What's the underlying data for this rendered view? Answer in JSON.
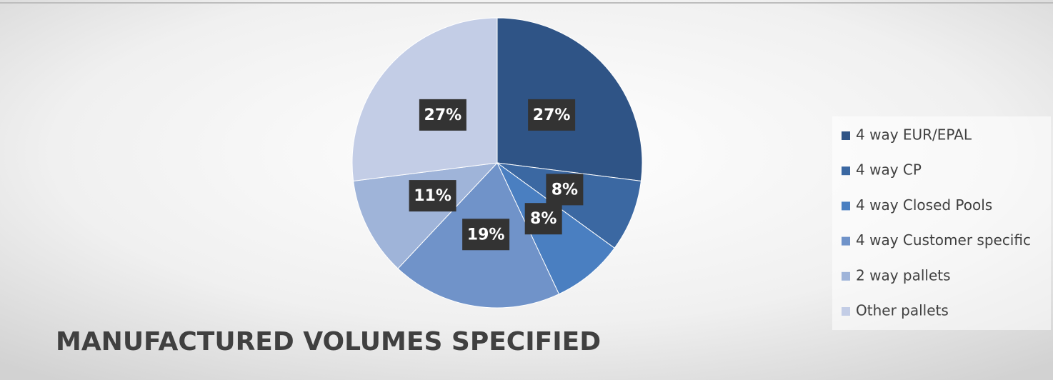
{
  "chart_data": {
    "type": "pie",
    "title": "MANUFACTURED VOLUMES SPECIFIED",
    "categories": [
      "4 way EUR/EPAL",
      "4 way CP",
      "4 way Closed Pools",
      "4 way Customer specific",
      "2 way pallets",
      "Other pallets"
    ],
    "values": [
      27,
      8,
      8,
      19,
      11,
      27
    ],
    "value_labels": [
      "27%",
      "8%",
      "8%",
      "19%",
      "11%",
      "27%"
    ],
    "colors": [
      "#2f5486",
      "#3b68a2",
      "#4a7fc1",
      "#7093c9",
      "#9fb4d9",
      "#c3cde6"
    ],
    "legend": "right"
  }
}
